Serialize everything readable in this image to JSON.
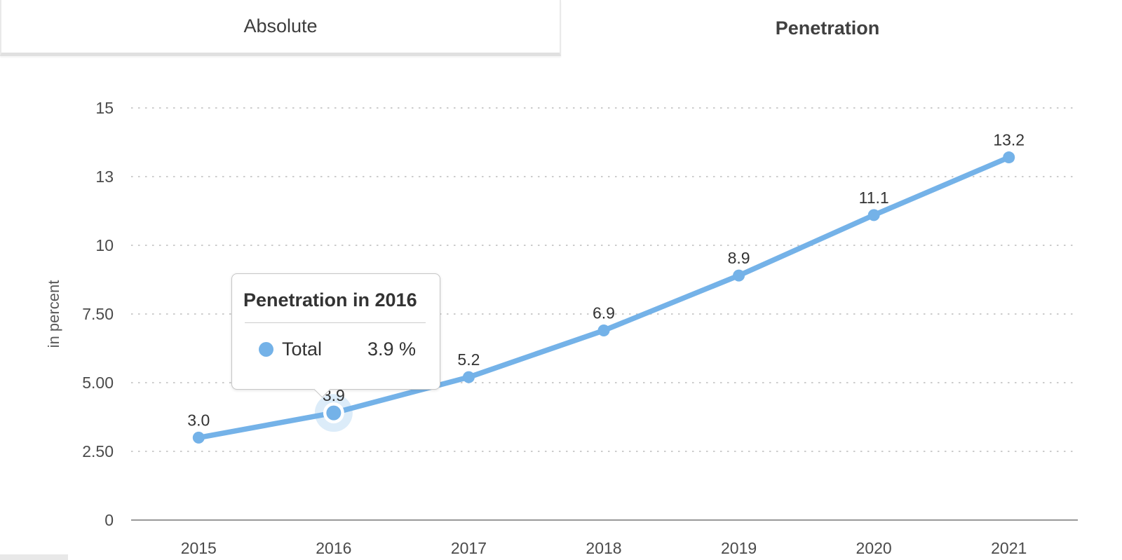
{
  "tabs": [
    {
      "label": "Absolute",
      "active": false
    },
    {
      "label": "Penetration",
      "active": true
    }
  ],
  "tooltip": {
    "title": "Penetration in 2016",
    "series_label": "Total",
    "value": "3.9 %"
  },
  "colors": {
    "line": "#74b2e8",
    "halo": "rgba(116,178,232,0.25)",
    "grid": "#cccccc",
    "axis": "#999999"
  },
  "chart_data": {
    "type": "line",
    "categories": [
      "2015",
      "2016",
      "2017",
      "2018",
      "2019",
      "2020",
      "2021"
    ],
    "series": [
      {
        "name": "Total",
        "values": [
          3.0,
          3.9,
          5.2,
          6.9,
          8.9,
          11.1,
          13.2
        ]
      }
    ],
    "data_labels": [
      "3.0",
      "3.9",
      "5.2",
      "6.9",
      "8.9",
      "11.1",
      "13.2"
    ],
    "title": "",
    "xlabel": "",
    "ylabel": "in percent",
    "ylim": [
      0,
      15
    ],
    "yticks": [
      {
        "value": 0,
        "label": "0"
      },
      {
        "value": 2.5,
        "label": "2.50"
      },
      {
        "value": 5,
        "label": "5.00"
      },
      {
        "value": 7.5,
        "label": "7.50"
      },
      {
        "value": 10,
        "label": "10"
      },
      {
        "value": 12.5,
        "label": "13"
      },
      {
        "value": 15,
        "label": "15"
      }
    ],
    "grid": "horizontal-dotted",
    "legend": "none",
    "highlight_index": 1,
    "highlight_tooltip": "Penetration in 2016: Total 3.9 %"
  }
}
